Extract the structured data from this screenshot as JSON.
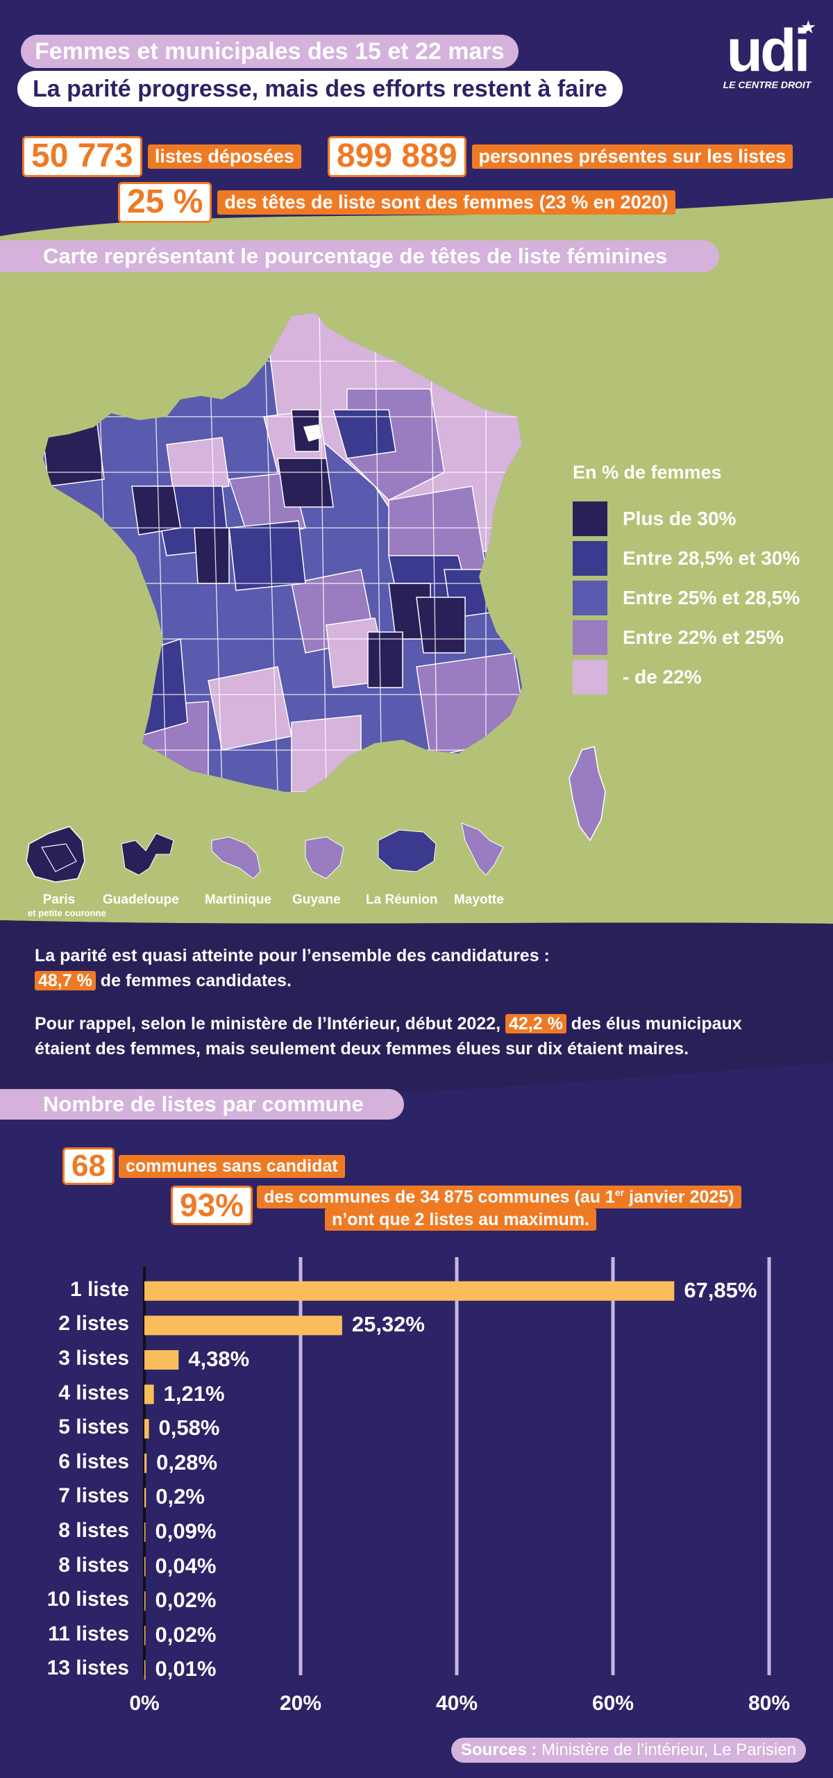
{
  "header": {
    "title": "Femmes et municipales des 15 et 22 mars",
    "subtitle": "La parité progresse, mais des efforts restent à faire"
  },
  "logo": {
    "word": "udi",
    "tagline": "LE CENTRE DROIT"
  },
  "stats": {
    "lists_number": "50 773",
    "lists_label": "listes déposées",
    "people_number": "899 889",
    "people_label": "personnes présentes sur les listes",
    "heads_number": "25 %",
    "heads_label": "des têtes de liste sont des femmes (23 % en 2020)"
  },
  "map_section": {
    "title": "Carte représentant le pourcentage de têtes de liste féminines",
    "legend_title": "En % de femmes",
    "legend": [
      {
        "label": "Plus de 30%",
        "color": "#2a2058"
      },
      {
        "label": "Entre 28,5% et 30%",
        "color": "#3b3a8e"
      },
      {
        "label": "Entre 25% et 28,5%",
        "color": "#5a5aae"
      },
      {
        "label": "Entre 22% et 25%",
        "color": "#9a7cc0"
      },
      {
        "label": "- de 22%",
        "color": "#d6b4dc"
      }
    ],
    "territories": [
      {
        "label": "Paris",
        "sublabel": "et petite couronne"
      },
      {
        "label": "Guadeloupe"
      },
      {
        "label": "Martinique"
      },
      {
        "label": "Guyane"
      },
      {
        "label": "La Réunion"
      },
      {
        "label": "Mayotte"
      }
    ]
  },
  "info": {
    "line1": "La parité est quasi atteinte pour l’ensemble des candidatures :",
    "candidates_pct": "48,7 %",
    "line2": "de femmes candidates.",
    "line3_pre": "Pour rappel, selon le ministère de l’Intérieur, début 2022,",
    "elected_pct": "42,2 %",
    "line3_post": "des élus municipaux",
    "line4": "étaient des femmes, mais seulement deux femmes élues sur dix étaient maires."
  },
  "lists_section": {
    "title": "Nombre de listes par commune",
    "no_candidate_number": "68",
    "no_candidate_label": "communes sans candidat",
    "max2_number": "93%",
    "max2_label_pre": "des communes de 34 875 communes (au 1",
    "max2_label_sup": "er",
    "max2_label_post": " janvier 2025)",
    "max2_label_line2": "n’ont que 2 listes au maximum."
  },
  "chart_data": {
    "type": "bar",
    "orientation": "horizontal",
    "categories": [
      "1 liste",
      "2 listes",
      "3 listes",
      "4 listes",
      "5 listes",
      "6 listes",
      "7 listes",
      "8 listes",
      "8 listes",
      "10 listes",
      "11 listes",
      "13 listes"
    ],
    "values": [
      67.85,
      25.32,
      4.38,
      1.21,
      0.58,
      0.28,
      0.2,
      0.09,
      0.04,
      0.02,
      0.02,
      0.01
    ],
    "value_labels": [
      "67,85%",
      "25,32%",
      "4,38%",
      "1,21%",
      "0,58%",
      "0,28%",
      "0,2%",
      "0,09%",
      "0,04%",
      "0,02%",
      "0,02%",
      "0,01%"
    ],
    "xticks": [
      "0%",
      "20%",
      "40%",
      "60%",
      "80%"
    ],
    "xlim": [
      0,
      80
    ],
    "bar_color": "#fbbd5c",
    "grid": true
  },
  "sources": {
    "label": "Sources :",
    "text": " Ministère de l’intérieur, Le Parisien"
  },
  "colors": {
    "orange": "#ef7a24",
    "navy": "#2c2466",
    "lilac": "#d4b2dc",
    "green": "#b4c277"
  }
}
